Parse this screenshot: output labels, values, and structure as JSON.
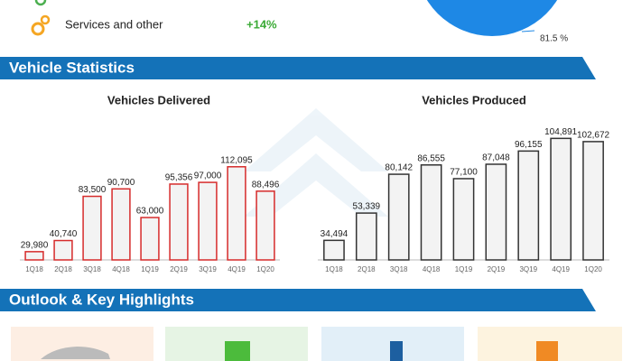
{
  "top": {
    "legend_item": "Services and other",
    "legend_change": "+14%",
    "pie_label": "81.5 %"
  },
  "sections": [
    "Vehicle Statistics",
    "Outlook & Key Highlights"
  ],
  "chart_data": [
    {
      "type": "bar",
      "title": "Vehicles Delivered",
      "categories": [
        "1Q18",
        "2Q18",
        "3Q18",
        "4Q18",
        "1Q19",
        "2Q19",
        "3Q19",
        "4Q19",
        "1Q20"
      ],
      "values": [
        29980,
        40740,
        83500,
        90700,
        63000,
        95356,
        97000,
        112095,
        88496
      ],
      "value_labels": [
        "29,980",
        "40,740",
        "83,500",
        "90,700",
        "63,000",
        "95,356",
        "97,000",
        "112,095",
        "88,496"
      ],
      "color": "#d62b2b",
      "ylim": [
        22000,
        125000
      ]
    },
    {
      "type": "bar",
      "title": "Vehicles Produced",
      "categories": [
        "1Q18",
        "2Q18",
        "3Q18",
        "4Q18",
        "1Q19",
        "2Q19",
        "3Q19",
        "4Q19",
        "1Q20"
      ],
      "values": [
        34494,
        53339,
        80142,
        86555,
        77100,
        87048,
        96155,
        104891,
        102672
      ],
      "value_labels": [
        "34,494",
        "53,339",
        "80,142",
        "86,555",
        "77,100",
        "87,048",
        "96,155",
        "104,891",
        "102,672"
      ],
      "color": "#333333",
      "ylim": [
        21000,
        113200
      ]
    }
  ]
}
